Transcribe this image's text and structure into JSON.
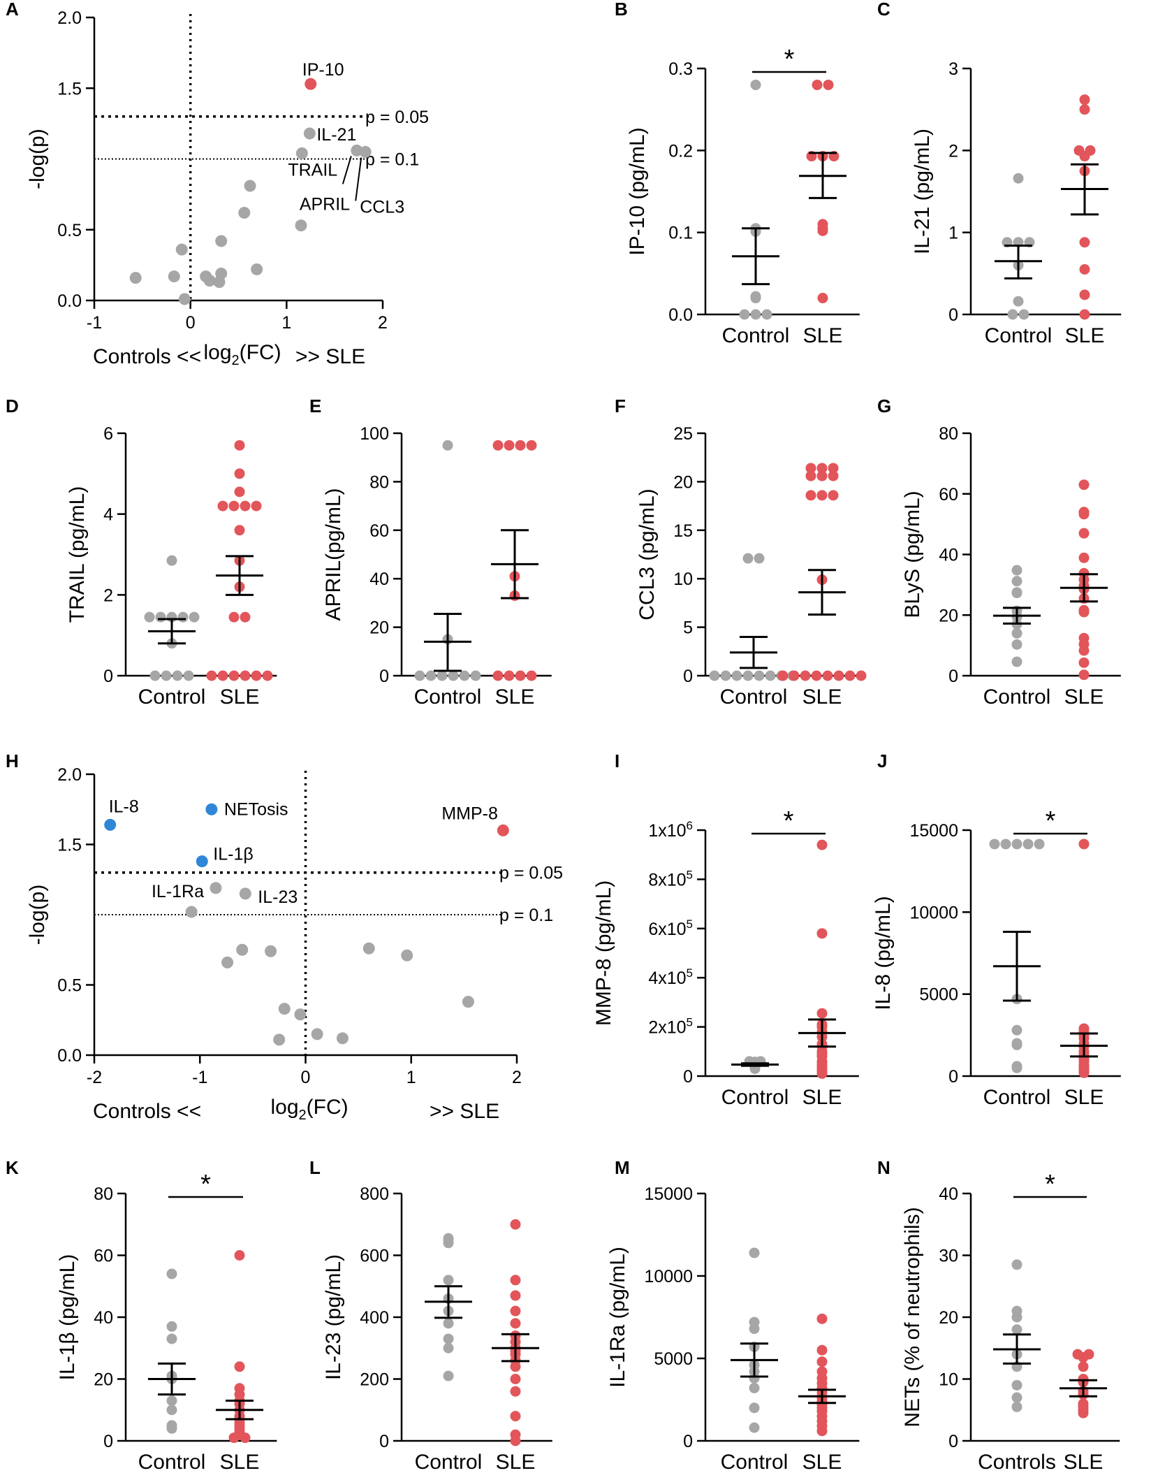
{
  "colors": {
    "control": "#a6a6a6",
    "sle": "#e2555a",
    "down": "#2f86d6",
    "axis": "#000000"
  },
  "chart_data": [
    {
      "panel": "A",
      "type": "scatter",
      "subtype": "volcano",
      "xlabel_left": "Controls  <<",
      "xlabel_mid_pre": "log",
      "xlabel_mid_sub": "2",
      "xlabel_mid_post": "(FC)",
      "xlabel_right": ">>  SLE",
      "ylabel": "-log(p)",
      "xlim": [
        -1,
        2
      ],
      "ylim": [
        0,
        2
      ],
      "xticks": [
        "-1",
        "0",
        "1",
        "2"
      ],
      "yticks": [
        "0.0",
        "0.5",
        "1.5",
        "2.0"
      ],
      "thresholds": [
        {
          "label": "p = 0.05",
          "y": 1.3
        },
        {
          "label": "p = 0.1",
          "y": 1.0
        }
      ],
      "points": [
        {
          "x": 1.25,
          "y": 1.53,
          "label": "IP-10",
          "group": "sle"
        },
        {
          "x": 1.24,
          "y": 1.18,
          "label": "IL-21",
          "group": "ns"
        },
        {
          "x": 1.16,
          "y": 1.04,
          "label": "TRAIL",
          "group": "ns"
        },
        {
          "x": 1.73,
          "y": 1.06,
          "label": "APRIL",
          "group": "ns"
        },
        {
          "x": 1.82,
          "y": 1.05,
          "label": "CCL3",
          "group": "ns"
        },
        {
          "x": -0.57,
          "y": 0.16,
          "group": "ns"
        },
        {
          "x": -0.17,
          "y": 0.17,
          "group": "ns"
        },
        {
          "x": -0.09,
          "y": 0.36,
          "group": "ns"
        },
        {
          "x": -0.06,
          "y": 0.01,
          "group": "ns"
        },
        {
          "x": 0.16,
          "y": 0.17,
          "group": "ns"
        },
        {
          "x": 0.2,
          "y": 0.14,
          "group": "ns"
        },
        {
          "x": 0.3,
          "y": 0.13,
          "group": "ns"
        },
        {
          "x": 0.32,
          "y": 0.19,
          "group": "ns"
        },
        {
          "x": 0.32,
          "y": 0.42,
          "group": "ns"
        },
        {
          "x": 0.56,
          "y": 0.62,
          "group": "ns"
        },
        {
          "x": 0.62,
          "y": 0.81,
          "group": "ns"
        },
        {
          "x": 0.69,
          "y": 0.22,
          "group": "ns"
        },
        {
          "x": 1.15,
          "y": 0.53,
          "group": "ns"
        }
      ]
    },
    {
      "panel": "B",
      "type": "scatter",
      "subtype": "dot",
      "ylabel": "IP-10 (pg/mL)",
      "ylim": [
        0,
        0.3
      ],
      "yticks": [
        "0.0",
        "0.1",
        "0.2",
        "0.3"
      ],
      "categories": [
        "Control",
        "SLE"
      ],
      "significance": "*",
      "groups": [
        {
          "name": "Control",
          "mean": 0.071,
          "sem_low": 0.037,
          "sem_high": 0.105,
          "values": [
            0.28,
            0.105,
            0.101,
            0.022,
            0.02,
            0.0,
            0.0,
            0.0
          ]
        },
        {
          "name": "SLE",
          "mean": 0.169,
          "sem_low": 0.142,
          "sem_high": 0.197,
          "values": [
            0.28,
            0.28,
            0.193,
            0.193,
            0.193,
            0.105,
            0.11,
            0.102,
            0.02
          ]
        }
      ]
    },
    {
      "panel": "C",
      "type": "scatter",
      "subtype": "dot",
      "ylabel": "IL-21 (pg/mL)",
      "ylim": [
        0,
        3
      ],
      "yticks": [
        "0",
        "1",
        "2",
        "3"
      ],
      "categories": [
        "Control",
        "SLE"
      ],
      "groups": [
        {
          "name": "Control",
          "mean": 0.65,
          "sem_low": 0.44,
          "sem_high": 0.84,
          "values": [
            1.66,
            0.88,
            0.88,
            0.88,
            0.6,
            0.16,
            0.0,
            0.0
          ]
        },
        {
          "name": "SLE",
          "mean": 1.53,
          "sem_low": 1.22,
          "sem_high": 1.83,
          "values": [
            2.62,
            2.5,
            2.0,
            2.0,
            1.93,
            1.75,
            0.88,
            0.55,
            0.24,
            0.0
          ]
        }
      ]
    },
    {
      "panel": "D",
      "type": "scatter",
      "subtype": "dot",
      "ylabel": "TRAIL (pg/mL)",
      "ylim": [
        0,
        6
      ],
      "yticks": [
        "0",
        "2",
        "4",
        "6"
      ],
      "categories": [
        "Control",
        "SLE"
      ],
      "groups": [
        {
          "name": "Control",
          "mean": 1.1,
          "sem_low": 0.8,
          "sem_high": 1.4,
          "values": [
            2.85,
            1.45,
            1.45,
            1.45,
            1.45,
            1.45,
            0.8,
            0.0,
            0.0,
            0.0,
            0.0
          ]
        },
        {
          "name": "SLE",
          "mean": 2.48,
          "sem_low": 2.0,
          "sem_high": 2.96,
          "values": [
            5.7,
            5.0,
            4.55,
            4.2,
            4.2,
            4.2,
            4.2,
            3.6,
            2.85,
            2.2,
            1.45,
            1.45,
            0.0,
            0.0,
            0.0,
            0.0,
            0.0,
            0.0
          ]
        }
      ]
    },
    {
      "panel": "E",
      "type": "scatter",
      "subtype": "dot",
      "ylabel": "APRIL(pg/mL)",
      "ylim": [
        0,
        100
      ],
      "yticks": [
        "0",
        "20",
        "40",
        "60",
        "80",
        "100"
      ],
      "categories": [
        "Control",
        "SLE"
      ],
      "groups": [
        {
          "name": "Control",
          "mean": 14,
          "sem_low": 2,
          "sem_high": 25.5,
          "values": [
            95,
            15,
            0,
            0,
            0,
            0,
            0,
            0
          ]
        },
        {
          "name": "SLE",
          "mean": 46,
          "sem_low": 32,
          "sem_high": 60,
          "values": [
            95,
            95,
            95,
            95,
            41,
            33,
            0,
            0,
            0,
            0
          ]
        }
      ]
    },
    {
      "panel": "F",
      "type": "scatter",
      "subtype": "dot",
      "ylabel": "CCL3 (pg/mL)",
      "ylim": [
        0,
        25
      ],
      "yticks": [
        "0",
        "5",
        "10",
        "15",
        "20",
        "25"
      ],
      "categories": [
        "Control",
        "SLE"
      ],
      "groups": [
        {
          "name": "Control",
          "mean": 2.4,
          "sem_low": 0.8,
          "sem_high": 4.0,
          "values": [
            12.1,
            12.1,
            0,
            0,
            0,
            0,
            0,
            0,
            0,
            0
          ]
        },
        {
          "name": "SLE",
          "mean": 8.6,
          "sem_low": 6.3,
          "sem_high": 10.9,
          "values": [
            21.4,
            21.4,
            21.4,
            20.6,
            20.6,
            20.6,
            18.6,
            18.6,
            18.6,
            9.9,
            0,
            0,
            0,
            0,
            0,
            0,
            0,
            0
          ]
        }
      ]
    },
    {
      "panel": "G",
      "type": "scatter",
      "subtype": "dot",
      "ylabel": "BLyS (pg/mL)",
      "ylim": [
        0,
        80
      ],
      "yticks": [
        "0",
        "20",
        "40",
        "60",
        "80"
      ],
      "categories": [
        "Control",
        "SLE"
      ],
      "groups": [
        {
          "name": "Control",
          "mean": 19.8,
          "sem_low": 17.2,
          "sem_high": 22.4,
          "values": [
            34.8,
            31.2,
            27.5,
            27.3,
            21.4,
            19.5,
            19.4,
            17.0,
            14.0,
            10.3,
            4.6
          ]
        },
        {
          "name": "SLE",
          "mean": 29.0,
          "sem_low": 24.5,
          "sem_high": 33.5,
          "values": [
            63.0,
            54.0,
            53.3,
            47.0,
            38.9,
            33.8,
            31.7,
            29.7,
            28.6,
            25.5,
            21.6,
            21.0,
            12.4,
            10.4,
            8.3,
            4.3,
            0.3
          ]
        }
      ]
    },
    {
      "panel": "H",
      "type": "scatter",
      "subtype": "volcano",
      "xlabel_left": "Controls  <<",
      "xlabel_mid_pre": "log",
      "xlabel_mid_sub": "2",
      "xlabel_mid_post": "(FC)",
      "xlabel_right": ">>  SLE",
      "ylabel": "-log(p)",
      "xlim": [
        -2,
        2
      ],
      "ylim": [
        0,
        2
      ],
      "xticks": [
        "-2",
        "-1",
        "0",
        "1",
        "2"
      ],
      "yticks": [
        "0.0",
        "0.5",
        "1.5",
        "2.0"
      ],
      "thresholds": [
        {
          "label": "p = 0.05",
          "y": 1.3
        },
        {
          "label": "p = 0.1",
          "y": 1.0
        }
      ],
      "points": [
        {
          "x": -1.85,
          "y": 1.64,
          "label": "IL-8",
          "group": "down"
        },
        {
          "x": -0.89,
          "y": 1.75,
          "label": "NETosis",
          "group": "down"
        },
        {
          "x": -0.98,
          "y": 1.38,
          "label": "IL-1β",
          "group": "down"
        },
        {
          "x": 1.87,
          "y": 1.6,
          "label": "MMP-8",
          "group": "sle"
        },
        {
          "x": -0.85,
          "y": 1.19,
          "label": "IL-1Ra",
          "group": "ns"
        },
        {
          "x": -0.57,
          "y": 1.15,
          "label": "IL-23",
          "group": "ns"
        },
        {
          "x": -1.08,
          "y": 1.02,
          "group": "ns"
        },
        {
          "x": -0.74,
          "y": 0.66,
          "group": "ns"
        },
        {
          "x": -0.6,
          "y": 0.75,
          "group": "ns"
        },
        {
          "x": -0.33,
          "y": 0.74,
          "group": "ns"
        },
        {
          "x": -0.2,
          "y": 0.33,
          "group": "ns"
        },
        {
          "x": -0.05,
          "y": 0.29,
          "group": "ns"
        },
        {
          "x": -0.25,
          "y": 0.11,
          "group": "ns"
        },
        {
          "x": 0.11,
          "y": 0.15,
          "group": "ns"
        },
        {
          "x": 0.35,
          "y": 0.12,
          "group": "ns"
        },
        {
          "x": 0.6,
          "y": 0.76,
          "group": "ns"
        },
        {
          "x": 0.96,
          "y": 0.71,
          "group": "ns"
        },
        {
          "x": 1.54,
          "y": 0.38,
          "group": "ns"
        }
      ]
    },
    {
      "panel": "I",
      "type": "scatter",
      "subtype": "dot",
      "ylabel_pre": "MMP-8 (pg/mL)",
      "ylim": [
        0,
        1000000
      ],
      "yticks": [
        "0",
        "2x10",
        "4x10",
        "6x10",
        "8x10",
        "1x10"
      ],
      "ytick_exp": "5",
      "ytick_exp_top": "6",
      "categories": [
        "Control",
        "SLE"
      ],
      "significance": "*",
      "groups": [
        {
          "name": "Control",
          "mean": 47000,
          "sem_low": 42000,
          "sem_high": 52000,
          "values": [
            60000,
            60000,
            58000,
            55000,
            50000,
            48000,
            45000,
            40000,
            38000,
            30000
          ]
        },
        {
          "name": "SLE",
          "mean": 175000,
          "sem_low": 120000,
          "sem_high": 230000,
          "values": [
            940000,
            580000,
            255000,
            210000,
            200000,
            180000,
            160000,
            130000,
            120000,
            100000,
            90000,
            80000,
            60000,
            50000,
            40000,
            30000,
            20000,
            10000
          ]
        }
      ]
    },
    {
      "panel": "J",
      "type": "scatter",
      "subtype": "dot",
      "ylabel": "IL-8 (pg/mL)",
      "ylim": [
        0,
        15000
      ],
      "yticks": [
        "0",
        "5000",
        "10000",
        "15000"
      ],
      "categories": [
        "Control",
        "SLE"
      ],
      "significance": "*",
      "groups": [
        {
          "name": "Control",
          "mean": 6700,
          "sem_low": 4600,
          "sem_high": 8800,
          "values": [
            14150,
            14150,
            14150,
            14150,
            14150,
            4700,
            2800,
            1900,
            2000,
            600,
            500
          ]
        },
        {
          "name": "SLE",
          "mean": 1850,
          "sem_low": 1200,
          "sem_high": 2600,
          "values": [
            14150,
            2900,
            2700,
            2500,
            2300,
            2000,
            1800,
            1500,
            1300,
            1100,
            1000,
            900,
            700,
            600,
            500,
            400,
            300,
            200
          ]
        }
      ]
    },
    {
      "panel": "K",
      "type": "scatter",
      "subtype": "dot",
      "ylabel": "IL-1β  (pg/mL)",
      "ylim": [
        0,
        80
      ],
      "yticks": [
        "0",
        "20",
        "40",
        "60",
        "80"
      ],
      "categories": [
        "Control",
        "SLE"
      ],
      "significance": "*",
      "groups": [
        {
          "name": "Control",
          "mean": 20,
          "sem_low": 15,
          "sem_high": 25,
          "values": [
            54,
            37,
            33,
            21,
            20,
            13,
            10,
            5,
            4
          ]
        },
        {
          "name": "SLE",
          "mean": 10,
          "sem_low": 7,
          "sem_high": 13,
          "values": [
            60,
            24,
            17,
            15,
            13,
            12,
            10,
            8,
            7,
            6,
            5,
            4,
            3,
            2,
            1,
            1
          ]
        }
      ]
    },
    {
      "panel": "L",
      "type": "scatter",
      "subtype": "dot",
      "ylabel": "IL-23 (pg/mL)",
      "ylim": [
        0,
        800
      ],
      "yticks": [
        "0",
        "200",
        "400",
        "600",
        "800"
      ],
      "categories": [
        "Control",
        "SLE"
      ],
      "groups": [
        {
          "name": "Control",
          "mean": 450,
          "sem_low": 398,
          "sem_high": 500,
          "values": [
            655,
            650,
            640,
            520,
            460,
            420,
            380,
            330,
            300,
            210
          ]
        },
        {
          "name": "SLE",
          "mean": 300,
          "sem_low": 258,
          "sem_high": 345,
          "values": [
            700,
            520,
            470,
            420,
            380,
            340,
            320,
            300,
            290,
            280,
            260,
            240,
            200,
            160,
            80,
            20,
            0
          ]
        }
      ]
    },
    {
      "panel": "M",
      "type": "scatter",
      "subtype": "dot",
      "ylabel": "IL-1Ra (pg/mL)",
      "ylim": [
        0,
        15000
      ],
      "yticks": [
        "0",
        "5000",
        "10000",
        "15000"
      ],
      "categories": [
        "Control",
        "SLE"
      ],
      "groups": [
        {
          "name": "Control",
          "mean": 4900,
          "sem_low": 3900,
          "sem_high": 5900,
          "values": [
            11400,
            7200,
            6800,
            5700,
            4600,
            4200,
            3800,
            3200,
            2000,
            800
          ]
        },
        {
          "name": "SLE",
          "mean": 2700,
          "sem_low": 2300,
          "sem_high": 3100,
          "values": [
            7400,
            5500,
            4800,
            4200,
            3800,
            3500,
            3200,
            2900,
            2600,
            2400,
            2200,
            2000,
            1800,
            1500,
            1200,
            900,
            600
          ]
        }
      ]
    },
    {
      "panel": "N",
      "type": "scatter",
      "subtype": "dot",
      "ylabel": "NETs  (% of neutrophils)",
      "ylim": [
        0,
        40
      ],
      "yticks": [
        "0",
        "10",
        "20",
        "30",
        "40"
      ],
      "categories": [
        "Controls",
        "SLE"
      ],
      "significance": "*",
      "groups": [
        {
          "name": "Controls",
          "mean": 14.8,
          "sem_low": 12.5,
          "sem_high": 17.2,
          "values": [
            28.5,
            21,
            20,
            18,
            14,
            12,
            9,
            7,
            5.5
          ]
        },
        {
          "name": "SLE",
          "mean": 8.5,
          "sem_low": 7.2,
          "sem_high": 9.8,
          "values": [
            14,
            14,
            13.5,
            12,
            10,
            9.5,
            8,
            7.5,
            6,
            5.5,
            5,
            4.5
          ]
        }
      ]
    }
  ]
}
